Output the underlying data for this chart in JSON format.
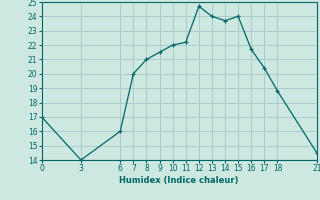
{
  "xlabel": "Humidex (Indice chaleur)",
  "bg_color": "#cce8e0",
  "grid_color": "#aacccc",
  "line_color": "#006666",
  "x_ticks": [
    0,
    3,
    6,
    7,
    8,
    9,
    10,
    11,
    12,
    13,
    14,
    15,
    16,
    17,
    18,
    21
  ],
  "ylim": [
    14,
    25
  ],
  "xlim": [
    0,
    21
  ],
  "y_ticks": [
    14,
    15,
    16,
    17,
    18,
    19,
    20,
    21,
    22,
    23,
    24,
    25
  ],
  "line1_x": [
    0,
    3,
    6,
    7,
    8,
    9,
    10,
    11,
    12,
    13,
    14,
    15,
    16,
    17,
    18,
    21
  ],
  "line1_y": [
    17,
    14,
    16,
    20,
    21,
    21.5,
    22,
    22.2,
    24.7,
    24,
    23.7,
    24,
    21.7,
    20.4,
    18.8,
    14.5
  ],
  "line2_x": [
    3,
    9,
    10,
    11,
    12,
    13,
    14,
    15,
    16,
    17,
    18,
    21
  ],
  "line2_y": [
    14,
    14,
    14,
    14,
    14,
    14,
    14,
    14,
    14,
    14,
    14,
    14
  ]
}
